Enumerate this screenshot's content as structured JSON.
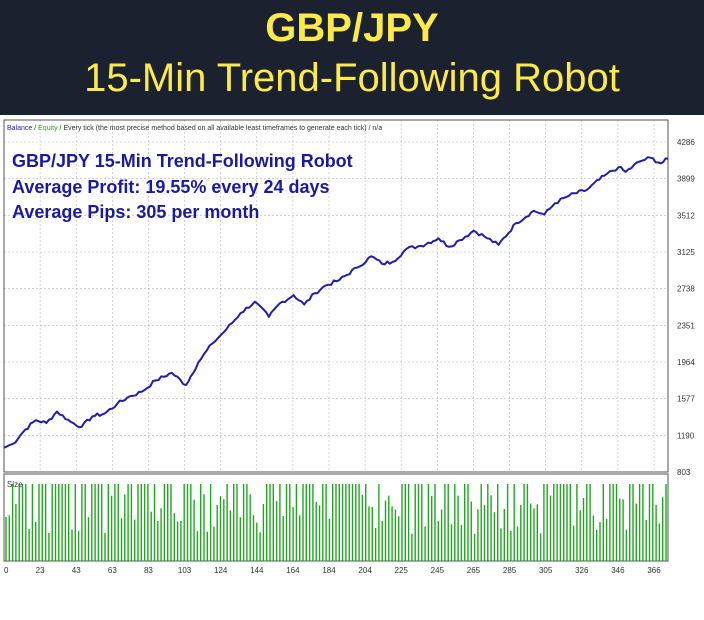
{
  "banner": {
    "title": "GBP/JPY",
    "subtitle": "15-Min Trend-Following Robot"
  },
  "chart_data": [
    {
      "type": "line",
      "header": {
        "balance": "Balance",
        "sep1": " / ",
        "equity": "Equity",
        "rest": " / Every tick (the most precise method based on all available least timeframes to generate each tick) / n/a"
      },
      "annotations": [
        "GBP/JPY 15-Min Trend-Following Robot",
        "Average Profit: 19.55% every 24 days",
        "Average Pips: 305 per month"
      ],
      "y_ticks": [
        "4286",
        "3899",
        "3512",
        "3125",
        "2738",
        "2351",
        "1964",
        "1577",
        "1190",
        "803"
      ],
      "ylim": [
        803,
        4286
      ],
      "xlim": [
        0,
        376
      ],
      "grid": true,
      "series": [
        {
          "x": [
            0,
            5,
            12,
            18,
            24,
            30,
            38,
            44,
            50,
            57,
            64,
            70,
            78,
            86,
            95,
            103,
            110,
            118,
            126,
            134,
            142,
            150,
            156,
            164,
            170,
            176,
            182,
            190,
            200,
            208,
            214,
            220,
            228,
            236,
            246,
            252,
            258,
            266,
            272,
            280,
            290,
            300,
            306,
            312,
            320,
            330,
            340,
            348,
            352,
            360,
            366,
            372,
            376
          ],
          "y": [
            1060,
            1100,
            1250,
            1350,
            1320,
            1440,
            1330,
            1280,
            1390,
            1420,
            1520,
            1590,
            1650,
            1770,
            1850,
            1720,
            1960,
            2160,
            2310,
            2480,
            2600,
            2440,
            2580,
            2670,
            2570,
            2690,
            2770,
            2830,
            2960,
            3080,
            3000,
            3020,
            3160,
            3190,
            3270,
            3180,
            3250,
            3350,
            3290,
            3200,
            3430,
            3560,
            3520,
            3640,
            3720,
            3780,
            3930,
            4020,
            3970,
            4080,
            4120,
            4060,
            4110
          ],
          "color": "#1f1fa8"
        }
      ]
    },
    {
      "type": "bar",
      "label": "Size",
      "x_ticks": [
        "0",
        "23",
        "43",
        "63",
        "83",
        "103",
        "124",
        "144",
        "164",
        "184",
        "204",
        "225",
        "245",
        "265",
        "285",
        "305",
        "326",
        "346",
        "366"
      ],
      "xlim": [
        0,
        376
      ],
      "bar_color": "#1fa81f"
    }
  ]
}
